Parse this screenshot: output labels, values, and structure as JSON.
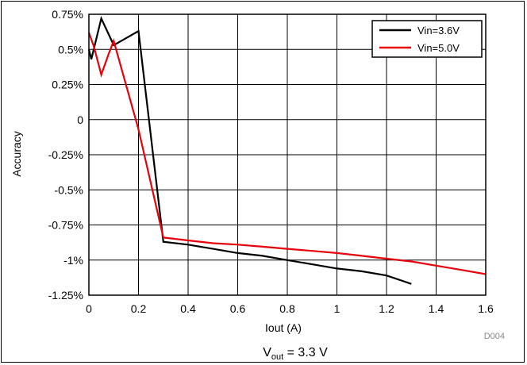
{
  "chart_data": {
    "type": "line",
    "title": "",
    "xlabel": "Iout (A)",
    "ylabel": "Accuracy",
    "xlim": [
      0,
      1.6
    ],
    "ylim": [
      -1.25,
      0.75
    ],
    "grid": true,
    "legend_position": "top-right",
    "x_ticks": [
      "0",
      "0.2",
      "0.4",
      "0.6",
      "0.8",
      "1",
      "1.2",
      "1.4",
      "1.6"
    ],
    "y_ticks": [
      "0.75%",
      "0.5%",
      "0.25%",
      "0",
      "-0.25%",
      "-0.5%",
      "-0.75%",
      "-1%",
      "-1.25%"
    ],
    "series": [
      {
        "name": "Vin=3.6V",
        "color": "#000000",
        "x": [
          0,
          0.01,
          0.05,
          0.1,
          0.2,
          0.3,
          0.4,
          0.5,
          0.6,
          0.7,
          0.8,
          0.9,
          1.0,
          1.1,
          1.2,
          1.3
        ],
        "y": [
          0.5,
          0.43,
          0.72,
          0.53,
          0.63,
          -0.87,
          -0.89,
          -0.92,
          -0.95,
          -0.97,
          -1.0,
          -1.03,
          -1.06,
          -1.08,
          -1.11,
          -1.17
        ]
      },
      {
        "name": "Vin=5.0V",
        "color": "#e8000b",
        "x": [
          0,
          0.02,
          0.05,
          0.08,
          0.1,
          0.2,
          0.3,
          0.4,
          0.5,
          0.6,
          0.7,
          0.8,
          0.9,
          1.0,
          1.1,
          1.2,
          1.3,
          1.4,
          1.5,
          1.6
        ],
        "y": [
          0.62,
          0.52,
          0.32,
          0.47,
          0.56,
          -0.07,
          -0.84,
          -0.86,
          -0.88,
          -0.89,
          -0.905,
          -0.92,
          -0.935,
          -0.95,
          -0.97,
          -0.99,
          -1.01,
          -1.04,
          -1.07,
          -1.1
        ]
      }
    ],
    "annotations": {
      "code": "D004",
      "caption_main": "V",
      "caption_sub": "out",
      "caption_rest": " = 3.3 V"
    }
  }
}
